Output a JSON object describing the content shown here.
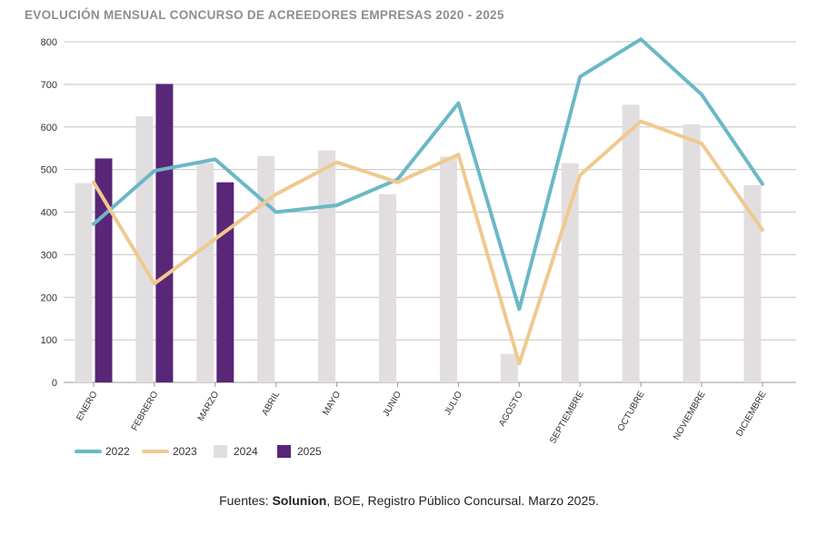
{
  "chart_data": {
    "type": "bar",
    "title": "EVOLUCIÓN MENSUAL CONCURSO DE ACREEDORES EMPRESAS 2020 - 2025",
    "categories": [
      "ENERO",
      "FEBRERO",
      "MARZO",
      "ABRIL",
      "MAYO",
      "JUNIO",
      "JULIO",
      "AGOSTO",
      "SEPTIEMBRE",
      "OCTUBRE",
      "NOVIEMBRE",
      "DICIEMBRE"
    ],
    "ylim": [
      0,
      800
    ],
    "yticks": [
      0,
      100,
      200,
      300,
      400,
      500,
      600,
      700,
      800
    ],
    "grid": true,
    "legend_position": "bottom-left",
    "series": [
      {
        "name": "2022",
        "kind": "line",
        "color": "#6bb8c6",
        "values": [
          372,
          497,
          524,
          400,
          416,
          477,
          656,
          172,
          718,
          806,
          676,
          466
        ]
      },
      {
        "name": "2023",
        "kind": "line",
        "color": "#f0c98f",
        "values": [
          470,
          232,
          337,
          442,
          517,
          470,
          535,
          44,
          487,
          613,
          561,
          358
        ]
      },
      {
        "name": "2024",
        "kind": "bar",
        "color": "#e2dedf",
        "values": [
          468,
          625,
          515,
          532,
          545,
          442,
          530,
          67,
          515,
          652,
          606,
          463
        ]
      },
      {
        "name": "2025",
        "kind": "bar",
        "color": "#5a2678",
        "values": [
          526,
          701,
          470,
          null,
          null,
          null,
          null,
          null,
          null,
          null,
          null,
          null
        ]
      }
    ]
  },
  "source": {
    "prefix": "Fuentes: ",
    "brand": "Solunion",
    "suffix": ", BOE, Registro Público Concursal. Marzo 2025."
  }
}
